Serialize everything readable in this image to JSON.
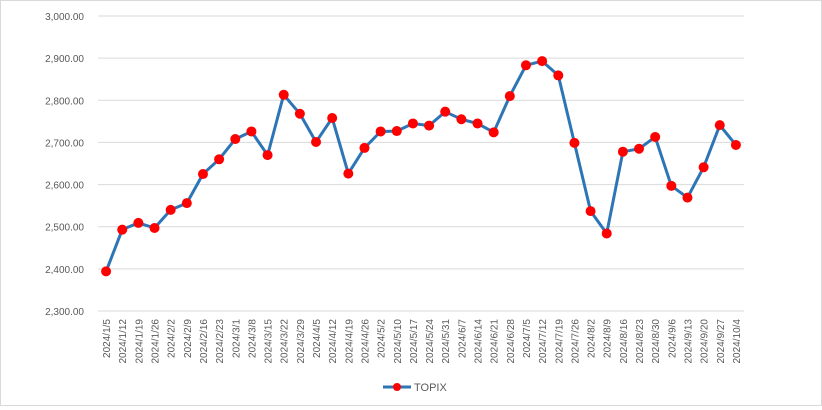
{
  "chart_data": {
    "type": "line",
    "title": "",
    "xlabel": "",
    "ylabel": "",
    "ylim": [
      2300,
      3000
    ],
    "y_ticks": [
      "2,300.00",
      "2,400.00",
      "2,500.00",
      "2,600.00",
      "2,700.00",
      "2,800.00",
      "2,900.00",
      "3,000.00"
    ],
    "y_tick_values": [
      2300,
      2400,
      2500,
      2600,
      2700,
      2800,
      2900,
      3000
    ],
    "grid": "horizontal",
    "legend_position": "bottom",
    "categories": [
      "2024/1/5",
      "2024/1/12",
      "2024/1/19",
      "2024/1/26",
      "2024/2/2",
      "2024/2/9",
      "2024/2/16",
      "2024/2/23",
      "2024/3/1",
      "2024/3/8",
      "2024/3/15",
      "2024/3/22",
      "2024/3/29",
      "2024/4/5",
      "2024/4/12",
      "2024/4/19",
      "2024/4/26",
      "2024/5/2",
      "2024/5/10",
      "2024/5/17",
      "2024/5/24",
      "2024/5/31",
      "2024/6/7",
      "2024/6/14",
      "2024/6/21",
      "2024/6/28",
      "2024/7/5",
      "2024/7/12",
      "2024/7/19",
      "2024/7/26",
      "2024/8/2",
      "2024/8/9",
      "2024/8/16",
      "2024/8/23",
      "2024/8/30",
      "2024/9/6",
      "2024/9/13",
      "2024/9/20",
      "2024/9/27",
      "2024/10/4"
    ],
    "series": [
      {
        "name": "TOPIX",
        "line_color": "#2E75B6",
        "marker_color": "#FF0000",
        "values": [
          2394,
          2493,
          2509,
          2497,
          2540,
          2556,
          2625,
          2660,
          2708,
          2726,
          2670,
          2813,
          2768,
          2701,
          2758,
          2626,
          2687,
          2726,
          2727,
          2745,
          2740,
          2773,
          2755,
          2745,
          2724,
          2810,
          2883,
          2893,
          2859,
          2699,
          2537,
          2484,
          2678,
          2685,
          2713,
          2597,
          2569,
          2641,
          2741,
          2694
        ]
      }
    ]
  }
}
